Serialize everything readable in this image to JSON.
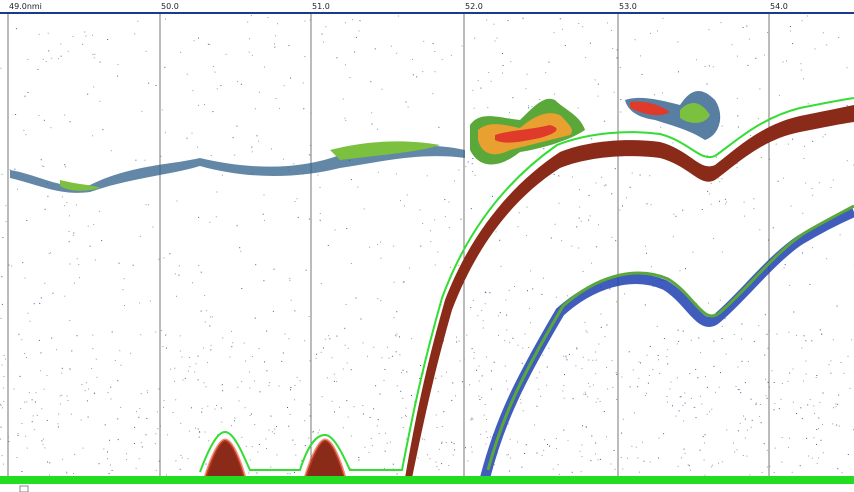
{
  "axis": {
    "labels": [
      "49.0nmi",
      "50.0",
      "51.0",
      "52.0",
      "53.0",
      "54.0"
    ]
  }
}
